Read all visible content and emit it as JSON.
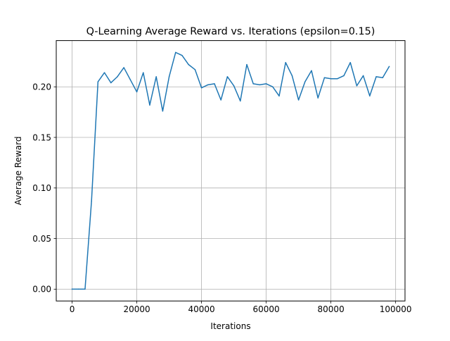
{
  "chart_data": {
    "type": "line",
    "title": "Q-Learning Average Reward vs. Iterations (epsilon=0.15)",
    "xlabel": "Iterations",
    "ylabel": "Average Reward",
    "xlim": [
      -4900,
      102900
    ],
    "ylim": [
      -0.0117,
      0.2457
    ],
    "x_ticks": [
      0,
      20000,
      40000,
      60000,
      80000,
      100000
    ],
    "y_ticks": [
      0.0,
      0.05,
      0.1,
      0.15,
      0.2
    ],
    "x_tick_labels": [
      "0",
      "20000",
      "40000",
      "60000",
      "80000",
      "100000"
    ],
    "y_tick_labels": [
      "0.00",
      "0.05",
      "0.10",
      "0.15",
      "0.20"
    ],
    "grid": true,
    "line_color": "#1f77b4",
    "series": [
      {
        "x": [
          0,
          2000,
          4000,
          6000,
          8000,
          10000,
          12000,
          14000,
          16000,
          18000,
          20000,
          22000,
          24000,
          26000,
          28000,
          30000,
          32000,
          34000,
          36000,
          38000,
          40000,
          42000,
          44000,
          46000,
          48000,
          50000,
          52000,
          54000,
          56000,
          58000,
          60000,
          62000,
          64000,
          66000,
          68000,
          70000,
          72000,
          74000,
          76000,
          78000,
          80000,
          82000,
          84000,
          86000,
          88000,
          90000,
          92000,
          94000,
          96000,
          98000
        ],
        "values": [
          0.0,
          0.0,
          0.0,
          0.087,
          0.205,
          0.214,
          0.204,
          0.21,
          0.219,
          0.207,
          0.195,
          0.214,
          0.182,
          0.21,
          0.176,
          0.21,
          0.234,
          0.231,
          0.222,
          0.217,
          0.199,
          0.202,
          0.203,
          0.187,
          0.21,
          0.201,
          0.186,
          0.222,
          0.203,
          0.202,
          0.203,
          0.2,
          0.191,
          0.224,
          0.211,
          0.187,
          0.205,
          0.216,
          0.189,
          0.209,
          0.208,
          0.208,
          0.211,
          0.224,
          0.201,
          0.211,
          0.191,
          0.21,
          0.209,
          0.22
        ]
      }
    ]
  }
}
